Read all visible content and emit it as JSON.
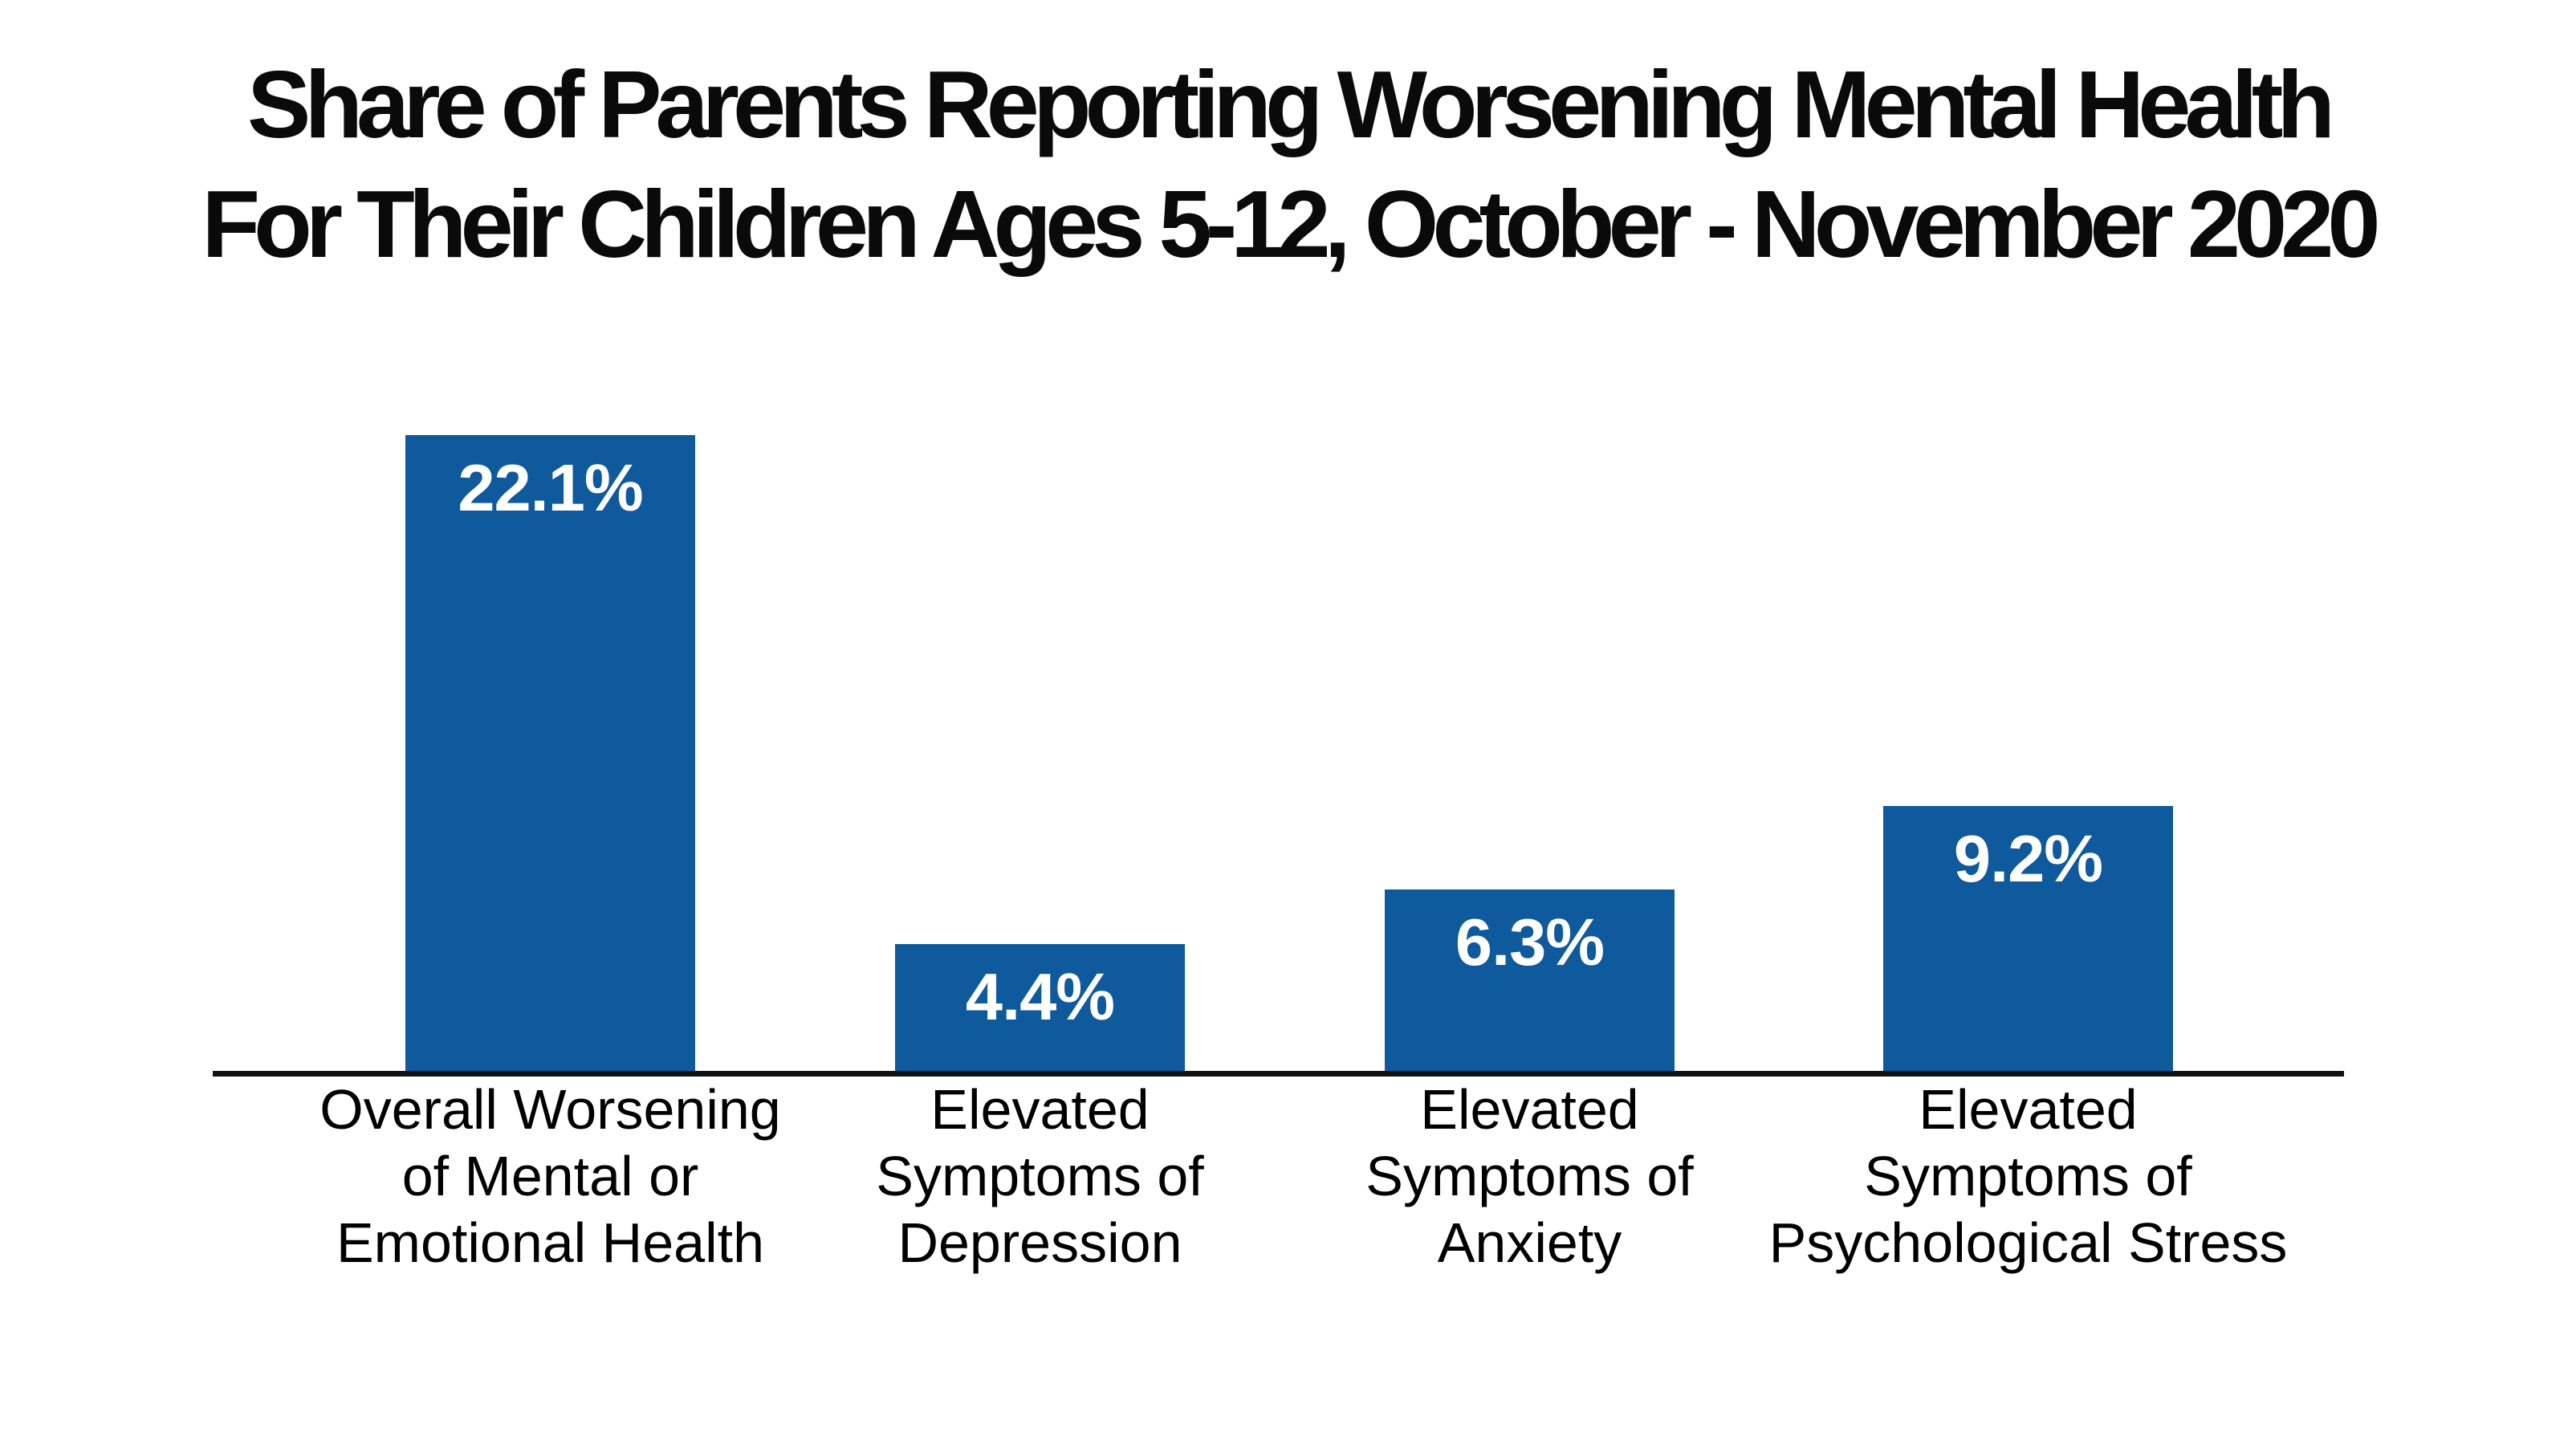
{
  "title": {
    "line1": "Share of Parents Reporting Worsening Mental Health",
    "line2": "For Their Children Ages 5-12, October - November 2020"
  },
  "chart_data": {
    "type": "bar",
    "title": "Share of Parents Reporting Worsening Mental Health For Their Children Ages 5-12, October - November 2020",
    "categories": [
      "Overall Worsening of Mental or Emotional Health",
      "Elevated Symptoms of Depression",
      "Elevated Symptoms of Anxiety",
      "Elevated Symptoms of Psychological Stress"
    ],
    "category_lines": [
      [
        "Overall Worsening",
        "of Mental or",
        "Emotional Health"
      ],
      [
        "Elevated",
        "Symptoms of",
        "Depression"
      ],
      [
        "Elevated",
        "Symptoms of",
        "Anxiety"
      ],
      [
        "Elevated",
        "Symptoms of",
        "Psychological Stress"
      ]
    ],
    "values": [
      22.1,
      4.4,
      6.3,
      9.2
    ],
    "value_labels": [
      "22.1%",
      "4.4%",
      "6.3%",
      "9.2%"
    ],
    "xlabel": "",
    "ylabel": "",
    "ylim": [
      0,
      24
    ],
    "grid": false,
    "legend": false,
    "bar_color": "#0F599D",
    "value_label_color": "#FFFFFF",
    "axis_color": "#111111",
    "title_color": "#0A0A0A",
    "category_label_color": "#000000"
  }
}
